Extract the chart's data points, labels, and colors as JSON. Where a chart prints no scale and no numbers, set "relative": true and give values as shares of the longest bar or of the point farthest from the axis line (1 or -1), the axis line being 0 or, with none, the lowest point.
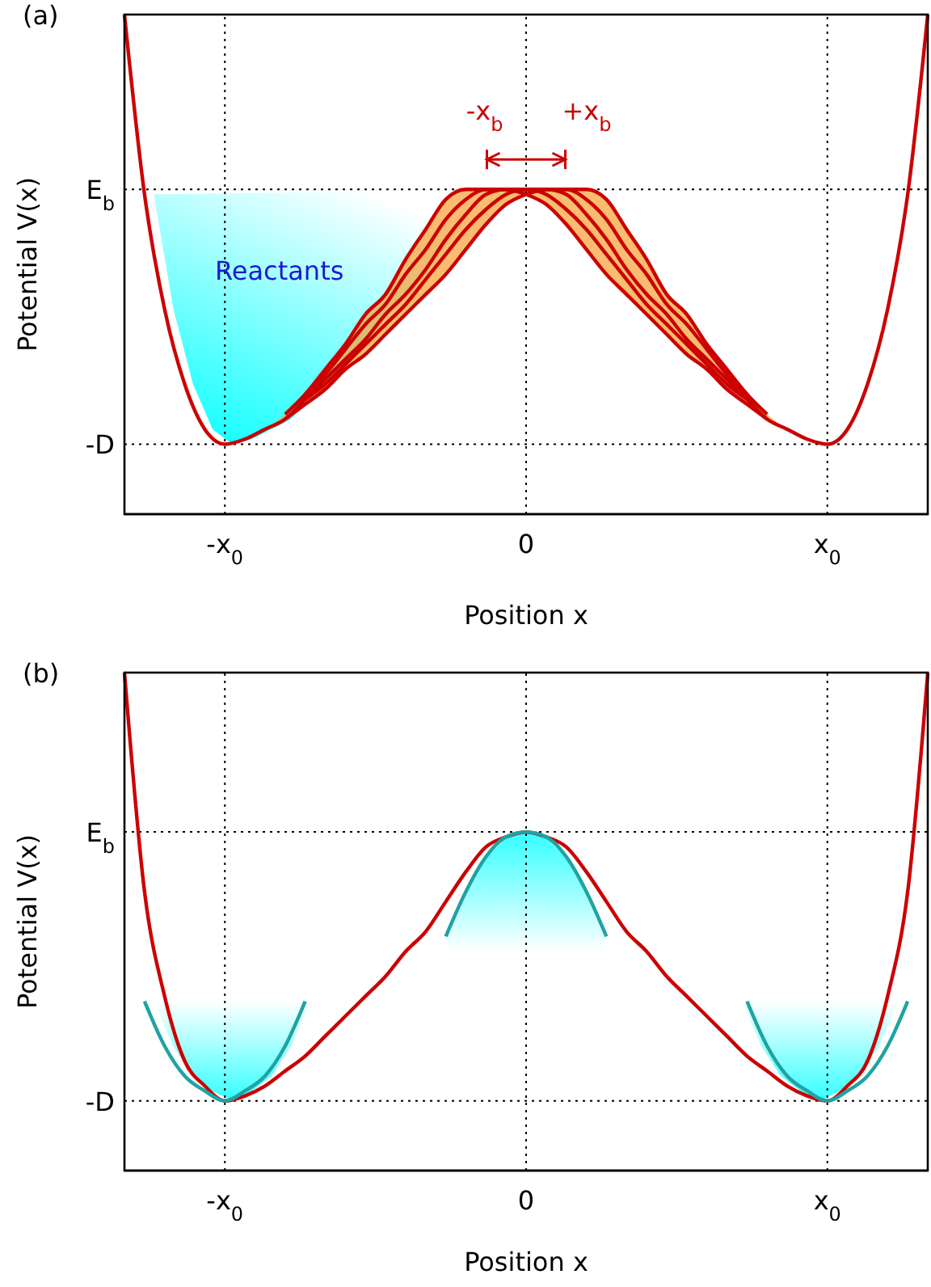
{
  "chart_data": [
    {
      "type": "line",
      "title": "(a)",
      "xlabel": "Position x",
      "ylabel": "Potential V(x)",
      "relative": true,
      "categories": [
        null,
        null,
        null,
        null,
        null,
        "-x$_{0}$",
        null,
        null,
        null,
        null,
        null,
        null,
        null,
        null,
        null,
        null,
        null,
        null,
        null,
        null,
        "0",
        null,
        null,
        null,
        null,
        null,
        null,
        null,
        null,
        null,
        null,
        null,
        null,
        null,
        null,
        "x$_{0}$",
        null,
        null,
        null,
        null,
        null
      ],
      "ref_lines": [
        {
          "axis": "y",
          "value": 0.65,
          "label": "E$_{b}$",
          "line_style": "dotted"
        },
        {
          "axis": "y",
          "value": 0.14,
          "label": "-D",
          "line_style": "dotted"
        },
        {
          "axis": "x",
          "value": "-x$_{0}$",
          "line_style": "dotted"
        },
        {
          "axis": "x",
          "value": "0",
          "line_style": "dotted"
        },
        {
          "axis": "x",
          "value": "x$_{0}$",
          "line_style": "dotted"
        }
      ],
      "marker": "none",
      "line_style": "solid",
      "annotations": [
        "Reactants",
        "-x$_{b}$",
        "+x$_{b}$"
      ],
      "series": [
        {
          "color": "#cc0000",
          "values": [
            null,
            null,
            null,
            null,
            null,
            null,
            null,
            null,
            0.2,
            0.24,
            0.29,
            0.34,
            0.4,
            0.44,
            0.51,
            0.57,
            0.63,
            0.65,
            0.65,
            0.65,
            0.64,
            0.62,
            0.58,
            0.53,
            0.48,
            0.44,
            0.4,
            0.36,
            0.32,
            0.29,
            0.25,
            0.22,
            0.19,
            null,
            null,
            null,
            null,
            null,
            null,
            null,
            null
          ]
        },
        {
          "color": "#cc0000",
          "values": [
            null,
            null,
            null,
            null,
            null,
            null,
            null,
            null,
            null,
            0.24,
            0.28,
            0.33,
            0.38,
            0.42,
            0.48,
            0.53,
            0.59,
            0.63,
            0.65,
            0.65,
            0.65,
            0.64,
            0.61,
            0.57,
            0.52,
            0.47,
            0.42,
            0.38,
            0.34,
            0.3,
            0.26,
            0.23,
            null,
            null,
            null,
            null,
            null,
            null,
            null,
            null,
            null
          ]
        },
        {
          "color": "#cc0000",
          "values": [
            1.0,
            0.64,
            0.41,
            0.26,
            0.17,
            0.14,
            0.15,
            0.17,
            0.19,
            0.23,
            0.27,
            0.31,
            0.35,
            0.4,
            0.44,
            0.49,
            0.55,
            0.6,
            0.64,
            0.65,
            0.65,
            0.65,
            0.64,
            0.6,
            0.55,
            0.49,
            0.44,
            0.4,
            0.35,
            0.31,
            0.27,
            0.23,
            0.19,
            0.17,
            0.15,
            0.14,
            0.17,
            0.26,
            0.41,
            0.64,
            1.0
          ],
          "lower": [
            1.0,
            0.64,
            0.41,
            0.26,
            0.17,
            0.14,
            0.15,
            0.17,
            0.19,
            0.22,
            0.25,
            0.29,
            0.32,
            0.36,
            0.4,
            0.44,
            0.48,
            0.53,
            0.58,
            0.62,
            0.64,
            0.62,
            0.58,
            0.53,
            0.48,
            0.44,
            0.4,
            0.36,
            0.32,
            0.29,
            0.25,
            0.22,
            0.19,
            0.17,
            0.15,
            0.14,
            0.17,
            0.26,
            0.41,
            0.64,
            1.0
          ],
          "upper": [
            1.0,
            0.64,
            0.41,
            0.26,
            0.17,
            0.14,
            0.15,
            0.17,
            0.2,
            0.24,
            0.29,
            0.34,
            0.4,
            0.44,
            0.51,
            0.57,
            0.63,
            0.65,
            0.65,
            0.65,
            0.65,
            0.65,
            0.65,
            0.65,
            0.63,
            0.57,
            0.51,
            0.44,
            0.4,
            0.34,
            0.29,
            0.24,
            0.2,
            0.17,
            0.15,
            0.14,
            0.17,
            0.26,
            0.41,
            0.64,
            1.0
          ]
        },
        {
          "color": "#cc0000",
          "values": [
            null,
            null,
            null,
            null,
            null,
            null,
            null,
            null,
            null,
            0.23,
            0.26,
            0.3,
            0.34,
            0.38,
            0.42,
            0.47,
            0.52,
            0.57,
            0.61,
            0.64,
            0.65,
            0.65,
            0.65,
            0.63,
            0.59,
            0.53,
            0.48,
            0.42,
            0.38,
            0.33,
            0.28,
            0.24,
            null,
            null,
            null,
            null,
            null,
            null,
            null,
            null,
            null
          ]
        },
        {
          "color": "#cc0000",
          "values": [
            null,
            null,
            null,
            null,
            null,
            null,
            null,
            null,
            0.19,
            0.22,
            0.25,
            0.29,
            0.32,
            0.36,
            0.4,
            0.44,
            0.48,
            0.53,
            0.58,
            0.62,
            0.64,
            0.65,
            0.65,
            0.65,
            0.63,
            0.57,
            0.51,
            0.44,
            0.4,
            0.34,
            0.29,
            0.24,
            0.2,
            null,
            null,
            null,
            null,
            null,
            null,
            null,
            null
          ]
        }
      ]
    },
    {
      "type": "line",
      "title": "(b)",
      "xlabel": "Position x",
      "ylabel": "Potential V(x)",
      "relative": true,
      "categories": [
        null,
        null,
        null,
        null,
        null,
        "-x$_{0}$",
        null,
        null,
        null,
        null,
        null,
        null,
        null,
        null,
        null,
        null,
        null,
        null,
        null,
        null,
        "0",
        null,
        null,
        null,
        null,
        null,
        null,
        null,
        null,
        null,
        null,
        null,
        null,
        null,
        null,
        "x$_{0}$",
        null,
        null,
        null,
        null,
        null
      ],
      "ref_lines": [
        {
          "axis": "y",
          "value": 0.68,
          "label": "E$_{b}$",
          "line_style": "dotted"
        },
        {
          "axis": "y",
          "value": 0.14,
          "label": "-D",
          "line_style": "dotted"
        },
        {
          "axis": "x",
          "value": "-x$_{0}$",
          "line_style": "dotted"
        },
        {
          "axis": "x",
          "value": "0",
          "line_style": "dotted"
        },
        {
          "axis": "x",
          "value": "x$_{0}$",
          "line_style": "dotted"
        }
      ],
      "marker": "none",
      "line_style": "solid",
      "series": [
        {
          "color": "#cc0000",
          "values": [
            1.0,
            0.56,
            0.35,
            0.22,
            0.17,
            0.14,
            0.15,
            0.17,
            0.2,
            0.23,
            0.27,
            0.31,
            0.35,
            0.39,
            0.44,
            0.48,
            0.54,
            0.6,
            0.65,
            0.67,
            0.68,
            0.67,
            0.65,
            0.6,
            0.54,
            0.48,
            0.44,
            0.39,
            0.35,
            0.31,
            0.27,
            0.23,
            0.2,
            0.17,
            0.15,
            0.14,
            0.17,
            0.22,
            0.35,
            0.56,
            1.0
          ]
        },
        {
          "color": "#1fa3a3",
          "values": [
            null,
            0.34,
            0.25,
            0.19,
            0.16,
            0.14,
            0.16,
            0.19,
            0.25,
            0.34,
            null,
            null,
            null,
            null,
            null,
            null,
            null,
            null,
            null,
            null,
            null,
            null,
            null,
            null,
            null,
            null,
            null,
            null,
            null,
            null,
            null,
            null,
            null,
            null,
            null,
            null,
            null,
            null,
            null,
            null,
            null
          ]
        },
        {
          "color": "#1fa3a3",
          "values": [
            null,
            null,
            null,
            null,
            null,
            null,
            null,
            null,
            null,
            null,
            null,
            null,
            null,
            null,
            null,
            null,
            0.47,
            0.56,
            0.63,
            0.67,
            0.68,
            0.67,
            0.63,
            0.56,
            0.47,
            null,
            null,
            null,
            null,
            null,
            null,
            null,
            null,
            null,
            null,
            null,
            null,
            null,
            null,
            null,
            null
          ]
        },
        {
          "color": "#1fa3a3",
          "values": [
            null,
            null,
            null,
            null,
            null,
            null,
            null,
            null,
            null,
            null,
            null,
            null,
            null,
            null,
            null,
            null,
            null,
            null,
            null,
            null,
            null,
            null,
            null,
            null,
            null,
            null,
            null,
            null,
            null,
            null,
            null,
            0.34,
            0.25,
            0.19,
            0.16,
            0.14,
            0.16,
            0.19,
            0.25,
            0.34,
            null
          ]
        }
      ]
    }
  ]
}
